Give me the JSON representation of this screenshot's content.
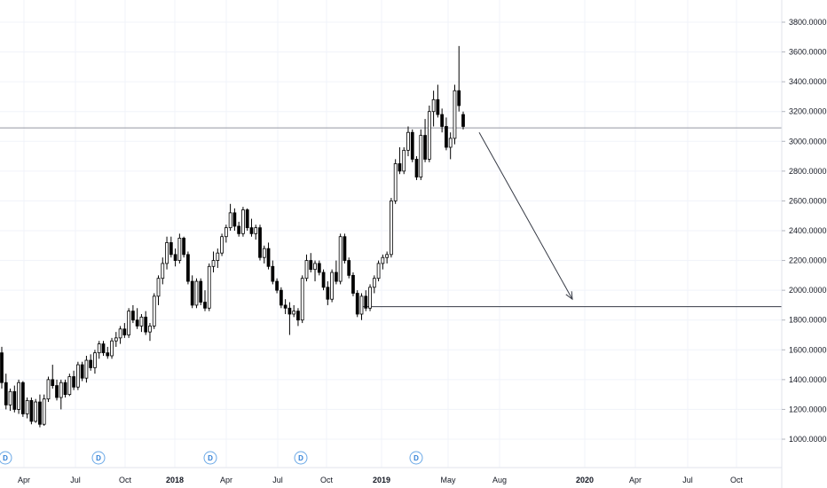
{
  "colors": {
    "background": "#ffffff",
    "candle_up_fill": "#ffffff",
    "candle_down_fill": "#000000",
    "candle_outline": "#000000",
    "grid": "#f0f3fa",
    "axis_text": "#131722",
    "drawing_lines": "#787b86",
    "dividend_badge": "#2f7fd6"
  },
  "chart_data": {
    "type": "candlestick",
    "interval": "weekly",
    "y_axis": {
      "ticks": [
        "3800.0000",
        "3600.0000",
        "3400.0000",
        "3200.0000",
        "3000.0000",
        "2800.0000",
        "2600.0000",
        "2400.0000",
        "2200.0000",
        "2000.0000",
        "1800.0000",
        "1600.0000",
        "1400.0000",
        "1200.0000",
        "1000.0000"
      ],
      "ylim": [
        880,
        3970
      ]
    },
    "x_axis": {
      "ticks": [
        {
          "label": "Apr",
          "year": false
        },
        {
          "label": "Jul",
          "year": false
        },
        {
          "label": "Oct",
          "year": false
        },
        {
          "label": "2018",
          "year": true
        },
        {
          "label": "Apr",
          "year": false
        },
        {
          "label": "Jul",
          "year": false
        },
        {
          "label": "Oct",
          "year": false
        },
        {
          "label": "2019",
          "year": true
        },
        {
          "label": "May",
          "year": false
        },
        {
          "label": "Aug",
          "year": false
        },
        {
          "label": "2020",
          "year": true
        },
        {
          "label": "Apr",
          "year": false
        },
        {
          "label": "Jul",
          "year": false
        },
        {
          "label": "Oct",
          "year": false
        }
      ]
    },
    "dividend_markers": [
      "D",
      "D",
      "D",
      "D",
      "D"
    ],
    "horizontal_lines": [
      3090,
      1890
    ],
    "projection_arrow": {
      "from_price": 3060,
      "to_price": 1940
    },
    "candles": [
      [
        1580,
        1620,
        1340,
        1380
      ],
      [
        1380,
        1440,
        1200,
        1230
      ],
      [
        1230,
        1340,
        1190,
        1320
      ],
      [
        1320,
        1360,
        1180,
        1200
      ],
      [
        1200,
        1400,
        1170,
        1380
      ],
      [
        1380,
        1390,
        1150,
        1170
      ],
      [
        1170,
        1280,
        1140,
        1260
      ],
      [
        1260,
        1280,
        1100,
        1120
      ],
      [
        1120,
        1270,
        1110,
        1250
      ],
      [
        1250,
        1300,
        1080,
        1100
      ],
      [
        1100,
        1300,
        1090,
        1270
      ],
      [
        1270,
        1420,
        1250,
        1400
      ],
      [
        1400,
        1500,
        1340,
        1360
      ],
      [
        1360,
        1400,
        1260,
        1280
      ],
      [
        1280,
        1400,
        1200,
        1380
      ],
      [
        1380,
        1400,
        1280,
        1300
      ],
      [
        1300,
        1440,
        1290,
        1420
      ],
      [
        1420,
        1460,
        1330,
        1350
      ],
      [
        1350,
        1520,
        1330,
        1500
      ],
      [
        1500,
        1520,
        1390,
        1410
      ],
      [
        1410,
        1560,
        1380,
        1530
      ],
      [
        1530,
        1570,
        1460,
        1480
      ],
      [
        1480,
        1600,
        1440,
        1580
      ],
      [
        1580,
        1660,
        1540,
        1640
      ],
      [
        1640,
        1660,
        1560,
        1580
      ],
      [
        1580,
        1620,
        1540,
        1560
      ],
      [
        1560,
        1680,
        1540,
        1660
      ],
      [
        1660,
        1720,
        1620,
        1680
      ],
      [
        1680,
        1760,
        1640,
        1740
      ],
      [
        1740,
        1780,
        1680,
        1700
      ],
      [
        1700,
        1880,
        1680,
        1860
      ],
      [
        1860,
        1900,
        1780,
        1800
      ],
      [
        1800,
        1880,
        1740,
        1760
      ],
      [
        1760,
        1840,
        1720,
        1820
      ],
      [
        1820,
        1860,
        1700,
        1720
      ],
      [
        1720,
        1780,
        1660,
        1760
      ],
      [
        1760,
        1980,
        1740,
        1960
      ],
      [
        1960,
        2100,
        1900,
        2080
      ],
      [
        2080,
        2220,
        2040,
        2180
      ],
      [
        2180,
        2360,
        2140,
        2320
      ],
      [
        2320,
        2360,
        2220,
        2240
      ],
      [
        2240,
        2280,
        2160,
        2200
      ],
      [
        2200,
        2380,
        2180,
        2350
      ],
      [
        2350,
        2360,
        2220,
        2240
      ],
      [
        2240,
        2260,
        2040,
        2060
      ],
      [
        2060,
        2100,
        1880,
        1900
      ],
      [
        1900,
        2080,
        1880,
        2060
      ],
      [
        2060,
        2080,
        1900,
        1920
      ],
      [
        1920,
        2000,
        1860,
        1880
      ],
      [
        1880,
        2180,
        1860,
        2160
      ],
      [
        2160,
        2260,
        2120,
        2200
      ],
      [
        2200,
        2280,
        2150,
        2250
      ],
      [
        2250,
        2380,
        2230,
        2360
      ],
      [
        2360,
        2440,
        2320,
        2420
      ],
      [
        2420,
        2580,
        2400,
        2520
      ],
      [
        2520,
        2550,
        2400,
        2430
      ],
      [
        2430,
        2460,
        2360,
        2380
      ],
      [
        2380,
        2560,
        2360,
        2540
      ],
      [
        2540,
        2550,
        2400,
        2420
      ],
      [
        2420,
        2480,
        2360,
        2380
      ],
      [
        2380,
        2440,
        2340,
        2420
      ],
      [
        2420,
        2440,
        2200,
        2220
      ],
      [
        2220,
        2300,
        2180,
        2280
      ],
      [
        2280,
        2320,
        2140,
        2160
      ],
      [
        2160,
        2200,
        2040,
        2060
      ],
      [
        2060,
        2080,
        1980,
        2000
      ],
      [
        2000,
        2020,
        1880,
        1900
      ],
      [
        1900,
        1940,
        1840,
        1880
      ],
      [
        1880,
        1920,
        1700,
        1840
      ],
      [
        1840,
        1900,
        1820,
        1860
      ],
      [
        1860,
        1880,
        1760,
        1800
      ],
      [
        1800,
        2100,
        1780,
        2080
      ],
      [
        2080,
        2240,
        2060,
        2200
      ],
      [
        2200,
        2250,
        2120,
        2140
      ],
      [
        2140,
        2200,
        2060,
        2180
      ],
      [
        2180,
        2200,
        2100,
        2120
      ],
      [
        2120,
        2140,
        2000,
        2020
      ],
      [
        2020,
        2060,
        1900,
        1940
      ],
      [
        1940,
        2140,
        1920,
        2120
      ],
      [
        2120,
        2200,
        2040,
        2060
      ],
      [
        2060,
        2380,
        2040,
        2360
      ],
      [
        2360,
        2380,
        2180,
        2200
      ],
      [
        2200,
        2220,
        2080,
        2100
      ],
      [
        2100,
        2120,
        1960,
        1980
      ],
      [
        1980,
        2000,
        1820,
        1840
      ],
      [
        1840,
        1980,
        1800,
        1960
      ],
      [
        1960,
        2000,
        1860,
        1880
      ],
      [
        1880,
        2040,
        1860,
        2020
      ],
      [
        2020,
        2100,
        1980,
        2080
      ],
      [
        2080,
        2200,
        2060,
        2180
      ],
      [
        2180,
        2240,
        2140,
        2220
      ],
      [
        2220,
        2260,
        2180,
        2240
      ],
      [
        2240,
        2620,
        2220,
        2600
      ],
      [
        2600,
        2880,
        2580,
        2850
      ],
      [
        2850,
        2960,
        2780,
        2800
      ],
      [
        2800,
        2960,
        2780,
        2940
      ],
      [
        2940,
        3100,
        2900,
        3060
      ],
      [
        3060,
        3080,
        2860,
        2880
      ],
      [
        2880,
        2900,
        2740,
        2760
      ],
      [
        2760,
        3080,
        2740,
        3040
      ],
      [
        3040,
        3150,
        2860,
        2880
      ],
      [
        2880,
        3240,
        2860,
        3200
      ],
      [
        3200,
        3340,
        3100,
        3280
      ],
      [
        3280,
        3380,
        3160,
        3180
      ],
      [
        3180,
        3220,
        3060,
        3100
      ],
      [
        3100,
        3160,
        2940,
        2960
      ],
      [
        2960,
        3060,
        2880,
        3020
      ],
      [
        3020,
        3380,
        2980,
        3340
      ],
      [
        3340,
        3640,
        3200,
        3240
      ],
      [
        3180,
        3200,
        3080,
        3100
      ]
    ]
  }
}
